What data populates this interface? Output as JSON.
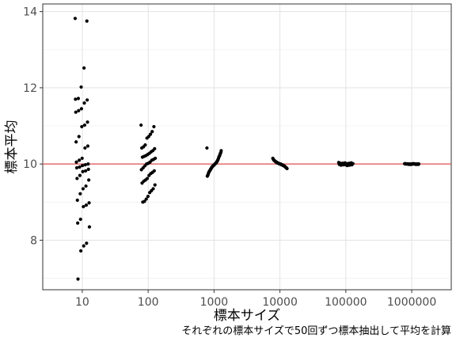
{
  "chart_data": {
    "type": "scatter",
    "x_type": "categorical",
    "categories": [
      "10",
      "100",
      "1000",
      "10000",
      "100000",
      "1000000"
    ],
    "xlabel": "標本サイズ",
    "ylabel": "標本平均",
    "caption": "それぞれの標本サイズで50回ずつ標本抽出して平均を計算",
    "yticks": [
      8,
      10,
      12,
      14
    ],
    "ylim": [
      6.7,
      14.2
    ],
    "reference_line": {
      "y": 10,
      "color": "#e05050"
    },
    "point_color": "#000000",
    "grid": true,
    "series": [
      {
        "category": "10",
        "values": [
          13.82,
          13.75,
          12.52,
          12.02,
          11.72,
          11.7,
          11.68,
          11.6,
          11.45,
          11.4,
          11.36,
          11.1,
          11.02,
          10.98,
          10.72,
          10.58,
          10.47,
          10.42,
          10.15,
          10.1,
          10.05,
          10.0,
          9.98,
          9.96,
          9.92,
          9.9,
          9.86,
          9.82,
          9.8,
          9.7,
          9.62,
          9.58,
          9.42,
          9.35,
          9.22,
          9.05,
          8.98,
          8.92,
          8.88,
          8.55,
          8.45,
          8.35,
          7.92,
          7.85,
          7.72,
          6.98
        ]
      },
      {
        "category": "100",
        "values": [
          11.02,
          10.98,
          10.85,
          10.78,
          10.72,
          10.68,
          10.5,
          10.45,
          10.42,
          10.4,
          10.35,
          10.32,
          10.28,
          10.25,
          10.22,
          10.2,
          10.18,
          10.15,
          10.12,
          10.1,
          10.05,
          10.02,
          10.0,
          9.95,
          9.9,
          9.85,
          9.82,
          9.78,
          9.75,
          9.7,
          9.62,
          9.58,
          9.55,
          9.5,
          9.45,
          9.35,
          9.3,
          9.25,
          9.15,
          9.08,
          9.02,
          9.0
        ]
      },
      {
        "category": "1000",
        "values": [
          10.42,
          10.35,
          10.3,
          10.28,
          10.25,
          10.22,
          10.2,
          10.18,
          10.15,
          10.12,
          10.1,
          10.08,
          10.06,
          10.05,
          10.03,
          10.02,
          10.01,
          10.0,
          9.99,
          9.98,
          9.97,
          9.96,
          9.95,
          9.94,
          9.93,
          9.92,
          9.9,
          9.88,
          9.87,
          9.85,
          9.83,
          9.82,
          9.8,
          9.78,
          9.76,
          9.72,
          9.7,
          9.68
        ]
      },
      {
        "category": "10000",
        "values": [
          10.15,
          10.13,
          10.11,
          10.1,
          10.09,
          10.08,
          10.07,
          10.06,
          10.05,
          10.05,
          10.04,
          10.03,
          10.03,
          10.02,
          10.02,
          10.01,
          10.01,
          10.0,
          10.0,
          10.0,
          9.99,
          9.99,
          9.98,
          9.98,
          9.97,
          9.97,
          9.96,
          9.95,
          9.95,
          9.94,
          9.93,
          9.92,
          9.91,
          9.9,
          9.89,
          9.88
        ]
      },
      {
        "category": "100000",
        "values": [
          10.04,
          10.03,
          10.03,
          10.02,
          10.02,
          10.02,
          10.01,
          10.01,
          10.01,
          10.01,
          10.0,
          10.0,
          10.0,
          10.0,
          10.0,
          10.0,
          9.99,
          9.99,
          9.99,
          9.99,
          9.98,
          9.98,
          9.98,
          9.97,
          9.97,
          9.96
        ]
      },
      {
        "category": "1000000",
        "values": [
          10.01,
          10.01,
          10.01,
          10.01,
          10.0,
          10.0,
          10.0,
          10.0,
          10.0,
          10.0,
          10.0,
          10.0,
          10.0,
          10.0,
          10.0,
          10.0,
          10.0,
          10.0,
          9.99,
          9.99,
          9.99,
          9.99,
          9.99,
          9.99
        ]
      }
    ]
  }
}
